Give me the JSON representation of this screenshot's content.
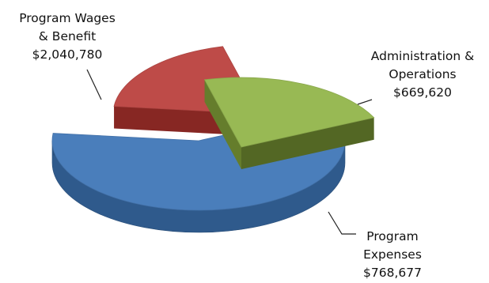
{
  "chart_data": {
    "type": "pie",
    "style": "3d-exploded",
    "title": "",
    "legend": "none",
    "slices": [
      {
        "name": "Program Wages & Benefit",
        "label_lines": [
          "Program Wages",
          "& Benefit"
        ],
        "value": 2040780,
        "value_label": "$2,040,780",
        "color": "#4a7ebb",
        "side_color": "#2f5a8c"
      },
      {
        "name": "Administration & Operations",
        "label_lines": [
          "Administration &",
          "Operations"
        ],
        "value": 669620,
        "value_label": "$669,620",
        "color": "#be4b48",
        "side_color": "#7b2320"
      },
      {
        "name": "Program Expenses",
        "label_lines": [
          "Program",
          "Expenses"
        ],
        "value": 768677,
        "value_label": "$768,677",
        "color": "#98b954",
        "side_color": "#5c7228"
      }
    ]
  }
}
